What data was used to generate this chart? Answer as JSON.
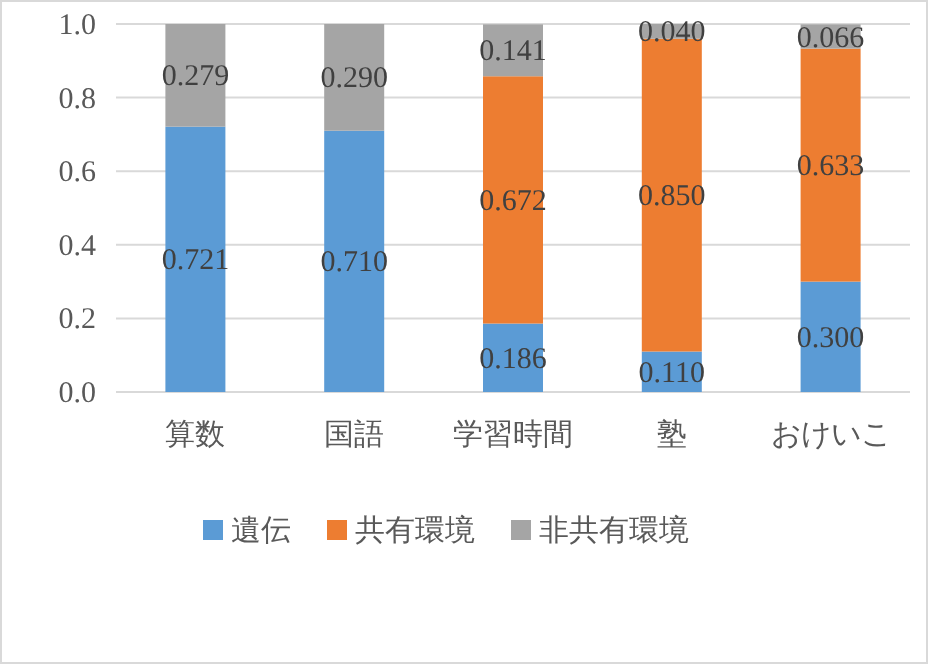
{
  "chart_data": {
    "type": "bar",
    "stacked": true,
    "categories": [
      "算数",
      "国語",
      "学習時間",
      "塾",
      "おけいこ"
    ],
    "series": [
      {
        "name": "遺伝",
        "color": "#5b9bd5",
        "values": [
          0.721,
          0.71,
          0.186,
          0.11,
          0.3
        ],
        "value_labels": [
          "0.721",
          "0.710",
          "0.186",
          "0.110",
          "0.300"
        ]
      },
      {
        "name": "共有環境",
        "color": "#ed7d31",
        "values": [
          null,
          null,
          0.672,
          0.85,
          0.633
        ],
        "value_labels": [
          null,
          null,
          "0.672",
          "0.850",
          "0.633"
        ]
      },
      {
        "name": "非共有環境",
        "color": "#a5a5a5",
        "values": [
          0.279,
          0.29,
          0.141,
          0.04,
          0.066
        ],
        "value_labels": [
          "0.279",
          "0.290",
          "0.141",
          "0.040",
          "0.066"
        ]
      }
    ],
    "ylim": [
      0,
      1
    ],
    "yticks": [
      {
        "value": 0,
        "label": "0.0"
      },
      {
        "value": 0.2,
        "label": "0.2"
      },
      {
        "value": 0.4,
        "label": "0.4"
      },
      {
        "value": 0.6,
        "label": "0.6"
      },
      {
        "value": 0.8,
        "label": "0.8"
      },
      {
        "value": 1,
        "label": "1.0"
      }
    ],
    "grid": "y",
    "legend": "bottom"
  }
}
